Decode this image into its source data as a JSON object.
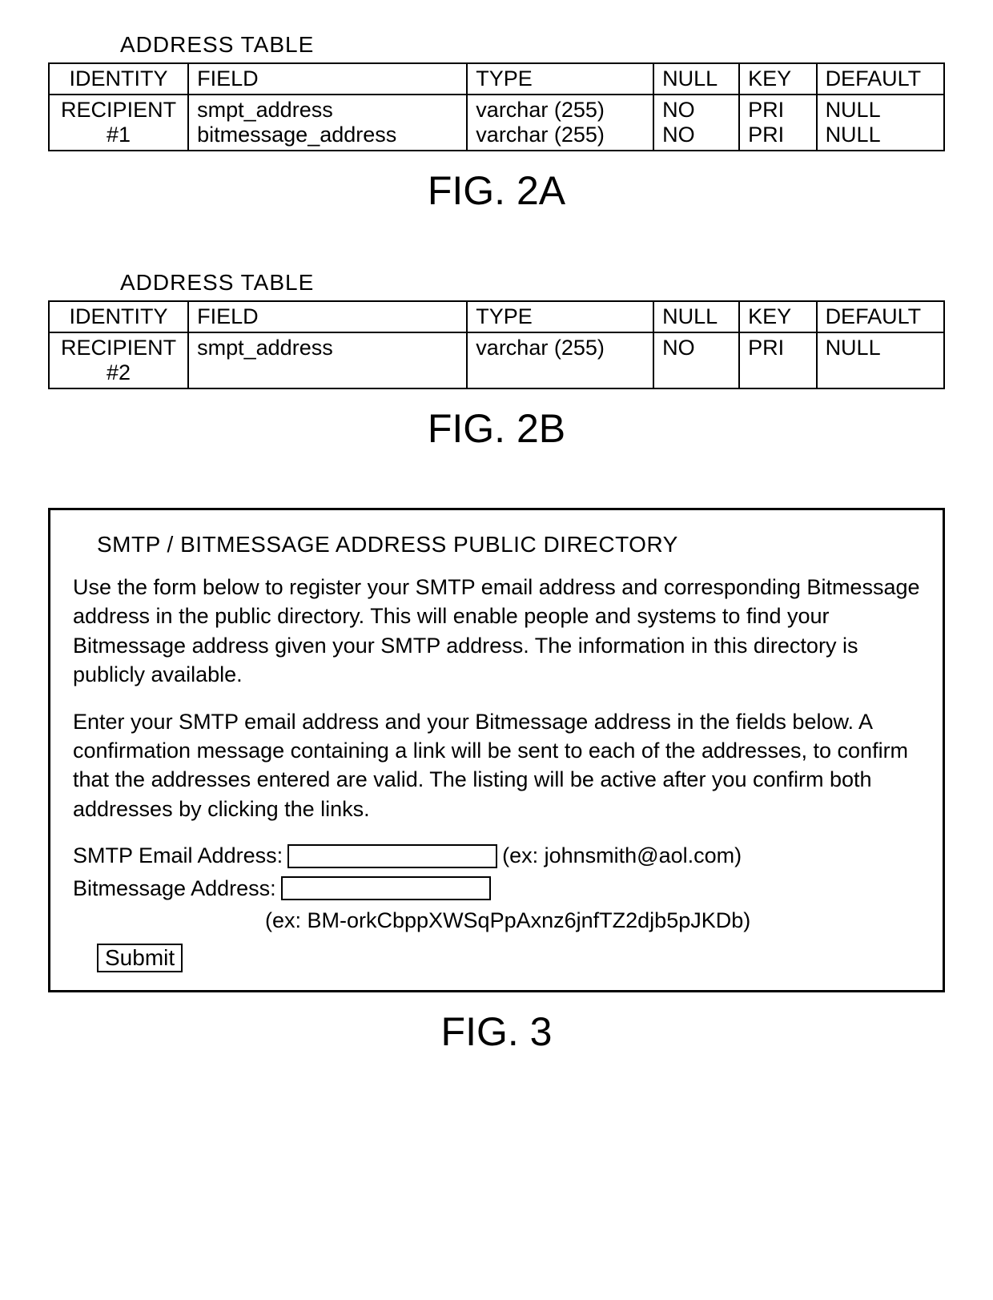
{
  "fig2a": {
    "title": "ADDRESS TABLE",
    "caption": "FIG. 2A",
    "headers": {
      "identity": "IDENTITY",
      "field": "FIELD",
      "type": "TYPE",
      "null": "NULL",
      "key": "KEY",
      "default": "DEFAULT"
    },
    "identity": "RECIPIENT\n#1",
    "rows": [
      {
        "field": "smpt_address",
        "type": "varchar (255)",
        "null": "NO",
        "key": "PRI",
        "default": "NULL"
      },
      {
        "field": "bitmessage_address",
        "type": "varchar (255)",
        "null": "NO",
        "key": "PRI",
        "default": "NULL"
      }
    ]
  },
  "fig2b": {
    "title": "ADDRESS TABLE",
    "caption": "FIG. 2B",
    "headers": {
      "identity": "IDENTITY",
      "field": "FIELD",
      "type": "TYPE",
      "null": "NULL",
      "key": "KEY",
      "default": "DEFAULT"
    },
    "identity": "RECIPIENT\n#2",
    "rows": [
      {
        "field": "smpt_address",
        "type": "varchar (255)",
        "null": "NO",
        "key": "PRI",
        "default": "NULL"
      }
    ],
    "blank_row": true
  },
  "fig3": {
    "title": "SMTP / BITMESSAGE ADDRESS PUBLIC DIRECTORY",
    "caption": "FIG. 3",
    "para1": "Use the form below to register your SMTP email address and corresponding Bitmessage address in the public directory.  This will enable people and systems to find your Bitmessage address given your SMTP address.  The information in this directory is publicly available.",
    "para2": "Enter your SMTP email address and your Bitmessage address in the fields below.  A confirmation message containing a link will be sent to each of the addresses, to confirm that the addresses entered are valid.  The listing will be active after you confirm both addresses by clicking the links.",
    "smtp_label": "SMTP Email Address:",
    "smtp_hint": "(ex: johnsmith@aol.com)",
    "bm_label": "Bitmessage Address:",
    "bm_hint": "(ex: BM-orkCbppXWSqPpAxnz6jnfTZ2djb5pJKDb)",
    "submit_label": "Submit"
  }
}
